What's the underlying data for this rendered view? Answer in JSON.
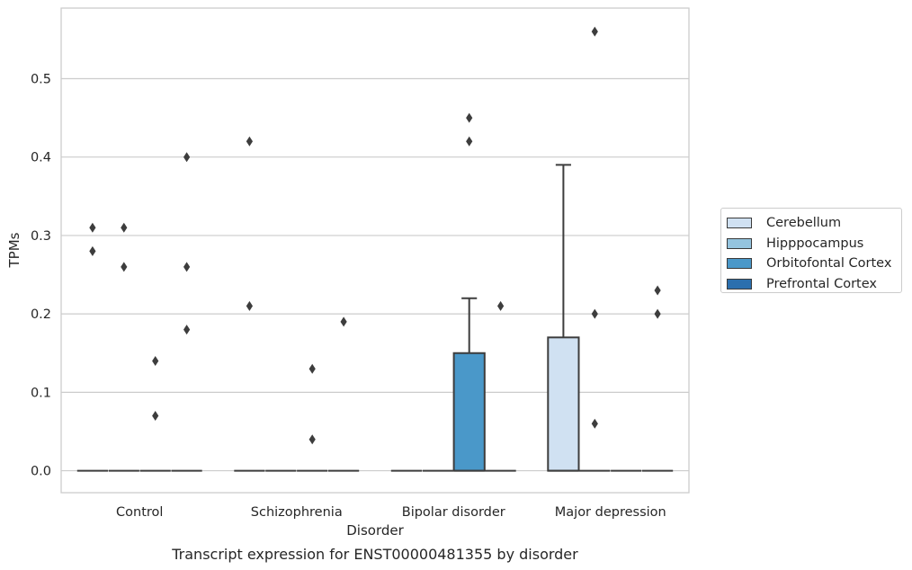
{
  "chart_data": {
    "type": "box",
    "title": "",
    "caption": "Transcript expression for ENST00000481355 by disorder",
    "xlabel": "Disorder",
    "ylabel": "TPMs",
    "ylim": [
      -0.028,
      0.59
    ],
    "yticks": [
      0.0,
      0.1,
      0.2,
      0.3,
      0.4,
      0.5
    ],
    "ytick_labels": [
      "0.0",
      "0.1",
      "0.2",
      "0.3",
      "0.4",
      "0.5"
    ],
    "grid": "horizontal",
    "legend_position": "outside-right",
    "categories": [
      "Control",
      "Schizophrenia",
      "Bipolar disorder",
      "Major depression"
    ],
    "series": [
      {
        "name": "Cerebellum",
        "color": "#d0e1f2",
        "boxes": [
          {
            "q1": 0,
            "median": 0,
            "q3": 0,
            "whisker_low": 0,
            "whisker_high": 0,
            "outliers": [
              0.31,
              0.28
            ]
          },
          {
            "q1": 0,
            "median": 0,
            "q3": 0,
            "whisker_low": 0,
            "whisker_high": 0,
            "outliers": [
              0.42,
              0.21
            ]
          },
          {
            "q1": 0,
            "median": 0,
            "q3": 0,
            "whisker_low": 0,
            "whisker_high": 0,
            "outliers": []
          },
          {
            "q1": 0,
            "median": 0,
            "q3": 0.17,
            "whisker_low": 0,
            "whisker_high": 0.39,
            "outliers": []
          }
        ]
      },
      {
        "name": "Hipppocampus",
        "color": "#94c4df",
        "boxes": [
          {
            "q1": 0,
            "median": 0,
            "q3": 0,
            "whisker_low": 0,
            "whisker_high": 0,
            "outliers": [
              0.31,
              0.26
            ]
          },
          {
            "q1": 0,
            "median": 0,
            "q3": 0,
            "whisker_low": 0,
            "whisker_high": 0,
            "outliers": []
          },
          {
            "q1": 0,
            "median": 0,
            "q3": 0,
            "whisker_low": 0,
            "whisker_high": 0,
            "outliers": []
          },
          {
            "q1": 0,
            "median": 0,
            "q3": 0,
            "whisker_low": 0,
            "whisker_high": 0,
            "outliers": [
              0.56,
              0.2,
              0.06
            ]
          }
        ]
      },
      {
        "name": "Orbitofontal Cortex",
        "color": "#4a98c9",
        "boxes": [
          {
            "q1": 0,
            "median": 0,
            "q3": 0,
            "whisker_low": 0,
            "whisker_high": 0,
            "outliers": [
              0.14,
              0.07
            ]
          },
          {
            "q1": 0,
            "median": 0,
            "q3": 0,
            "whisker_low": 0,
            "whisker_high": 0,
            "outliers": [
              0.13,
              0.04
            ]
          },
          {
            "q1": 0,
            "median": 0,
            "q3": 0.15,
            "whisker_low": 0,
            "whisker_high": 0.22,
            "outliers": [
              0.45,
              0.42
            ]
          },
          {
            "q1": 0,
            "median": 0,
            "q3": 0,
            "whisker_low": 0,
            "whisker_high": 0,
            "outliers": []
          }
        ]
      },
      {
        "name": "Prefrontal Cortex",
        "color": "#2b6fae",
        "boxes": [
          {
            "q1": 0,
            "median": 0,
            "q3": 0,
            "whisker_low": 0,
            "whisker_high": 0,
            "outliers": [
              0.4,
              0.26,
              0.18
            ]
          },
          {
            "q1": 0,
            "median": 0,
            "q3": 0,
            "whisker_low": 0,
            "whisker_high": 0,
            "outliers": [
              0.19
            ]
          },
          {
            "q1": 0,
            "median": 0,
            "q3": 0,
            "whisker_low": 0,
            "whisker_high": 0,
            "outliers": [
              0.21
            ]
          },
          {
            "q1": 0,
            "median": 0,
            "q3": 0,
            "whisker_low": 0,
            "whisker_high": 0,
            "outliers": [
              0.23,
              0.2
            ]
          }
        ]
      }
    ]
  }
}
